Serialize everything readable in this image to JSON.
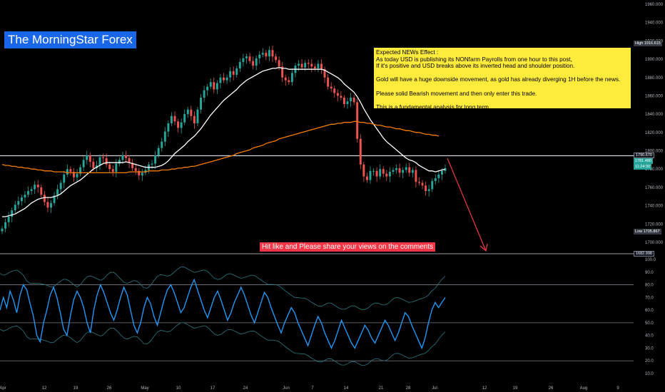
{
  "brand": "The MorningStar Forex",
  "note": {
    "title": "Expected NEWs Effect :",
    "line1": "As today USD is publishing its NONfarm Payrolls from one hour to this post,",
    "line2": "If it's positive and USD breaks above its inverted head and shoulder position.",
    "line3": "Gold will have a huge downside movement, as gold has already diverging 1H before the news.",
    "line4": "Please solid Bearish movement and then only enter this trade.",
    "line5": "This is a fundamental analysis for long term."
  },
  "share_text": "Hit like and Please share your views on the comments",
  "price_tags": {
    "high_label": "High",
    "high_value": "1916.615",
    "low_label": "Low",
    "low_value": "1705.867",
    "resistance": "1790.670",
    "last": "1781.480",
    "countdown": "11:24:30",
    "support": "1682.998"
  },
  "colors": {
    "up": "#26a69a",
    "down": "#ef5350",
    "fast_ma": "#ffffff",
    "slow_ma": "#f57c00",
    "oscillator": "#2196f3",
    "band": "#2a7a82",
    "projection": "#f23645"
  },
  "chart_data": [
    {
      "type": "candlestick",
      "title": "",
      "y_ticks": [
        1700,
        1720,
        1740,
        1760,
        1780,
        1800,
        1820,
        1840,
        1860,
        1880,
        1900,
        1920,
        1940,
        1960
      ],
      "ylim": [
        1690,
        1970
      ],
      "x_ticks": [
        "Apr",
        "12",
        "19",
        "26",
        "May",
        "10",
        "17",
        "24",
        "Jun",
        "7",
        "14",
        "21",
        "28",
        "Jul",
        "12",
        "19",
        "26",
        "Aug",
        "9"
      ],
      "grid": false,
      "close": [
        1715,
        1722,
        1728,
        1735,
        1741,
        1745,
        1749,
        1752,
        1756,
        1758,
        1763,
        1760,
        1752,
        1744,
        1738,
        1743,
        1751,
        1758,
        1765,
        1774,
        1780,
        1777,
        1771,
        1775,
        1782,
        1790,
        1795,
        1788,
        1781,
        1784,
        1793,
        1792,
        1785,
        1780,
        1777,
        1786,
        1790,
        1795,
        1792,
        1787,
        1781,
        1778,
        1773,
        1776,
        1779,
        1785,
        1786,
        1795,
        1803,
        1810,
        1821,
        1830,
        1838,
        1832,
        1825,
        1831,
        1840,
        1845,
        1838,
        1830,
        1845,
        1858,
        1866,
        1870,
        1875,
        1867,
        1874,
        1880,
        1877,
        1880,
        1887,
        1883,
        1890,
        1897,
        1901,
        1903,
        1898,
        1893,
        1901,
        1905,
        1907,
        1903,
        1910,
        1903,
        1899,
        1892,
        1880,
        1877,
        1875,
        1885,
        1893,
        1895,
        1891,
        1896,
        1895,
        1892,
        1890,
        1895,
        1889,
        1880,
        1870,
        1868,
        1863,
        1860,
        1858,
        1851,
        1854,
        1858,
        1853,
        1813,
        1785,
        1772,
        1768,
        1778,
        1778,
        1772,
        1780,
        1775,
        1772,
        1777,
        1779,
        1781,
        1776,
        1779,
        1782,
        1776,
        1779,
        1766,
        1765,
        1762,
        1756,
        1758,
        1767,
        1770,
        1774,
        1778,
        1781
      ],
      "series": [
        {
          "name": "",
          "type": "line",
          "values": [
            1728,
            1728,
            1729,
            1730,
            1731,
            1733,
            1735,
            1737,
            1740,
            1743,
            1745,
            1747,
            1748,
            1749,
            1749,
            1749,
            1750,
            1751,
            1753,
            1756,
            1759,
            1762,
            1764,
            1766,
            1768,
            1771,
            1774,
            1777,
            1780,
            1782,
            1784,
            1786,
            1787,
            1787,
            1787,
            1787,
            1787,
            1787,
            1788,
            1787,
            1786,
            1785,
            1784,
            1783,
            1782,
            1782,
            1782,
            1782,
            1783,
            1784,
            1786,
            1789,
            1793,
            1797,
            1800,
            1803,
            1806,
            1810,
            1813,
            1816,
            1820,
            1824,
            1829,
            1834,
            1839,
            1843,
            1847,
            1851,
            1855,
            1858,
            1861,
            1864,
            1867,
            1871,
            1874,
            1877,
            1879,
            1881,
            1883,
            1885,
            1887,
            1888,
            1889,
            1890,
            1890,
            1891,
            1890,
            1890,
            1889,
            1889,
            1889,
            1889,
            1889,
            1889,
            1889,
            1889,
            1889,
            1889,
            1889,
            1888,
            1886,
            1884,
            1882,
            1880,
            1877,
            1873,
            1870,
            1867,
            1864,
            1859,
            1853,
            1846,
            1840,
            1834,
            1829,
            1824,
            1819,
            1814,
            1810,
            1807,
            1804,
            1801,
            1798,
            1795,
            1792,
            1790,
            1789,
            1787,
            1784,
            1782,
            1780,
            1778,
            1778,
            1777,
            1778,
            1779,
            1780
          ]
        },
        {
          "name": "",
          "type": "line",
          "values": [
            1785,
            1784,
            1784,
            1783,
            1783,
            1782,
            1782,
            1781,
            1781,
            1780,
            1780,
            1779,
            1779,
            1778,
            1778,
            1778,
            1777,
            1777,
            1777,
            1777,
            1776,
            1776,
            1776,
            1776,
            1776,
            1776,
            1776,
            1776,
            1776,
            1776,
            1776,
            1776,
            1776,
            1776,
            1776,
            1776,
            1776,
            1776,
            1776,
            1777,
            1777,
            1777,
            1777,
            1777,
            1777,
            1778,
            1778,
            1778,
            1778,
            1779,
            1779,
            1779,
            1780,
            1780,
            1781,
            1781,
            1782,
            1782,
            1783,
            1783,
            1784,
            1785,
            1786,
            1787,
            1788,
            1789,
            1790,
            1791,
            1792,
            1793,
            1794,
            1795,
            1797,
            1798,
            1799,
            1800,
            1801,
            1803,
            1804,
            1805,
            1806,
            1808,
            1809,
            1810,
            1811,
            1813,
            1814,
            1815,
            1816,
            1817,
            1818,
            1819,
            1820,
            1821,
            1822,
            1823,
            1824,
            1825,
            1826,
            1827,
            1828,
            1829,
            1829,
            1830,
            1830,
            1831,
            1831,
            1831,
            1832,
            1832,
            1831,
            1831,
            1830,
            1830,
            1829,
            1828,
            1828,
            1827,
            1826,
            1826,
            1825,
            1824,
            1824,
            1823,
            1822,
            1822,
            1821,
            1820,
            1820,
            1819,
            1818,
            1818,
            1817,
            1817,
            1816
          ]
        }
      ],
      "annotations": [
        "1790.670",
        "1682.998"
      ]
    },
    {
      "type": "line",
      "title": "",
      "y_ticks": [
        10,
        20,
        30,
        40,
        50,
        60,
        70,
        80,
        90,
        100
      ],
      "ylim": [
        5,
        103
      ],
      "levels": [
        80,
        50,
        20
      ],
      "grid": false,
      "series": [
        {
          "name": "",
          "values": [
            60,
            70,
            62,
            75,
            68,
            58,
            72,
            80,
            76,
            65,
            55,
            40,
            35,
            50,
            60,
            72,
            78,
            70,
            58,
            45,
            40,
            55,
            68,
            75,
            70,
            62,
            50,
            42,
            60,
            72,
            80,
            74,
            66,
            58,
            52,
            60,
            70,
            78,
            72,
            60,
            48,
            42,
            50,
            62,
            70,
            65,
            55,
            48,
            58,
            68,
            76,
            80,
            74,
            66,
            58,
            62,
            70,
            78,
            84,
            76,
            68,
            60,
            54,
            62,
            70,
            75,
            68,
            60,
            52,
            58,
            66,
            72,
            78,
            72,
            64,
            56,
            50,
            58,
            66,
            74,
            70,
            62,
            55,
            48,
            42,
            50,
            56,
            62,
            58,
            50,
            44,
            38,
            32,
            40,
            48,
            55,
            50,
            42,
            36,
            30,
            36,
            44,
            52,
            46,
            40,
            34,
            30,
            36,
            42,
            48,
            44,
            38,
            34,
            40,
            46,
            52,
            48,
            42,
            36,
            42,
            50,
            58,
            55,
            48,
            42,
            36,
            30,
            38,
            50,
            60,
            66,
            62,
            66,
            70
          ]
        }
      ]
    }
  ]
}
